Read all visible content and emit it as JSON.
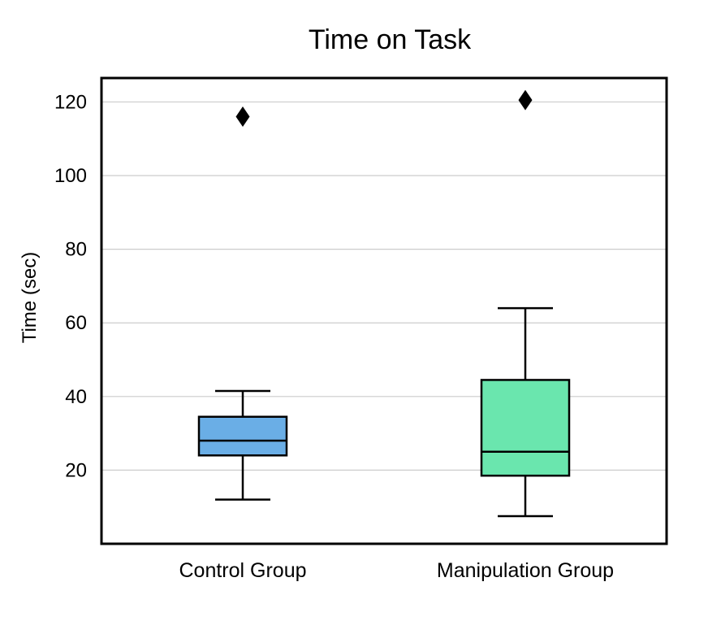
{
  "chart_data": {
    "type": "box",
    "title": "Time on Task",
    "xlabel": "",
    "ylabel": "Time (sec)",
    "ylim": [
      0,
      126.5
    ],
    "yticks": [
      20,
      40,
      60,
      80,
      100,
      120
    ],
    "grid": true,
    "categories": [
      "Control Group",
      "Manipulation Group"
    ],
    "boxes": [
      {
        "category": "Control Group",
        "whisker_low": 12,
        "q1": 24,
        "median": 28,
        "q3": 34.5,
        "whisker_high": 41.5,
        "outliers": [
          116
        ],
        "color": "#6aaee6"
      },
      {
        "category": "Manipulation Group",
        "whisker_low": 7.5,
        "q1": 18.5,
        "median": 25,
        "q3": 44.5,
        "whisker_high": 64,
        "outliers": [
          120.5
        ],
        "color": "#6ae6ae"
      }
    ]
  }
}
